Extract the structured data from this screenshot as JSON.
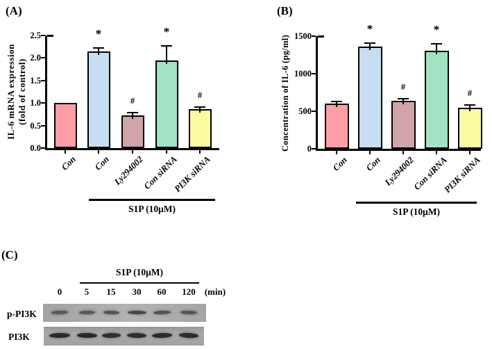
{
  "panel_labels": {
    "a": "(A)",
    "b": "(B)",
    "c": "(C)"
  },
  "chart_data": [
    {
      "panel": "A",
      "type": "bar",
      "title": "",
      "ylabel_lines": [
        "IL-6 mRNA expression",
        "(fold of control)"
      ],
      "ylim": [
        0,
        2.5
      ],
      "yticks": [
        0,
        0.5,
        1,
        1.5,
        2,
        2.5
      ],
      "ytick_labels": [
        "0.0",
        "0.5",
        "1.0",
        "1.5",
        "2.0",
        "2.5"
      ],
      "categories": [
        "Con",
        "Con",
        "Ly294002",
        "Con siRNA",
        "PI3K siRNA"
      ],
      "values": [
        1.0,
        2.15,
        0.72,
        1.95,
        0.87
      ],
      "errors": [
        0,
        0.09,
        0.08,
        0.33,
        0.06
      ],
      "significance": [
        "",
        "*",
        "#",
        "*",
        "#"
      ],
      "bar_colors": [
        "#fb9ea6",
        "#c7ddf1",
        "#d1a4a9",
        "#a2e3c3",
        "#fafaa2"
      ],
      "group_label": "S1P (10μM)",
      "group_span": [
        1,
        4
      ],
      "grid": false,
      "legend": "none"
    },
    {
      "panel": "B",
      "type": "bar",
      "title": "",
      "ylabel_lines": [
        "Concentration of IL-6 (pg/ml)"
      ],
      "ylim": [
        0,
        1500
      ],
      "yticks": [
        0,
        500,
        1000,
        1500
      ],
      "ytick_labels": [
        "0",
        "500",
        "1000",
        "1500"
      ],
      "categories": [
        "Con",
        "Con",
        "Ly294002",
        "Con siRNA",
        "PI3K siRNA"
      ],
      "values": [
        600,
        1360,
        640,
        1310,
        545
      ],
      "errors": [
        40,
        60,
        35,
        95,
        50
      ],
      "significance": [
        "",
        "*",
        "#",
        "*",
        "#"
      ],
      "bar_colors": [
        "#fb9ea6",
        "#c7ddf1",
        "#d1a4a9",
        "#a2e3c3",
        "#fafaa2"
      ],
      "group_label": "S1P (10μM)",
      "group_span": [
        1,
        4
      ],
      "grid": false,
      "legend": "none"
    }
  ],
  "blot_panel": {
    "title": "S1P (10μM)",
    "timepoints": [
      "0",
      "5",
      "15",
      "30",
      "60",
      "120"
    ],
    "time_unit": "(min)",
    "rows": [
      {
        "label": "p-PI3K",
        "band_intensities": [
          0.5,
          0.5,
          0.55,
          0.68,
          0.55,
          0.52
        ]
      },
      {
        "label": "PI3K",
        "band_intensities": [
          0.95,
          0.97,
          0.9,
          0.92,
          0.95,
          0.93
        ]
      }
    ]
  },
  "colors": {
    "axis": "#000000",
    "blot_membrane_light": "#aaaaaa",
    "blot_membrane_dark": "#a0a0a0"
  }
}
